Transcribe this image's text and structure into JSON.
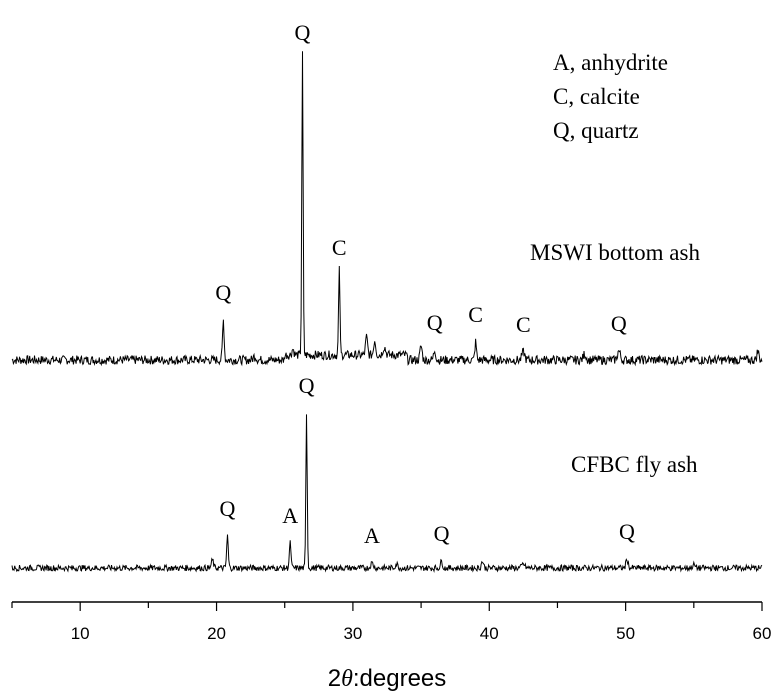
{
  "chart_data": {
    "type": "line",
    "xlabel_prefix": "2",
    "xlabel_symbol": "θ",
    "xlabel_suffix": ":degrees",
    "xlim": [
      5,
      60
    ],
    "x_ticks": [
      "10",
      "20",
      "30",
      "40",
      "50",
      "60"
    ],
    "legend": [
      "A, anhydrite",
      "C, calcite",
      "Q, quartz"
    ],
    "legend_position": "top-right",
    "series": [
      {
        "name": "MSWI bottom ash",
        "baseline": 0.0,
        "peaks": [
          {
            "x": 20.5,
            "y": 40,
            "w": 0.12,
            "label": "Q"
          },
          {
            "x": 22.8,
            "y": 4,
            "w": 0.2
          },
          {
            "x": 25.6,
            "y": 6,
            "w": 0.15
          },
          {
            "x": 26.3,
            "y": 300,
            "w": 0.1,
            "label": "Q"
          },
          {
            "x": 29.0,
            "y": 85,
            "w": 0.1,
            "label": "C"
          },
          {
            "x": 31.0,
            "y": 18,
            "w": 0.15
          },
          {
            "x": 31.6,
            "y": 15,
            "w": 0.15
          },
          {
            "x": 32.3,
            "y": 8,
            "w": 0.2
          },
          {
            "x": 35.0,
            "y": 14,
            "w": 0.15
          },
          {
            "x": 36.0,
            "y": 10,
            "w": 0.15,
            "label": "Q"
          },
          {
            "x": 39.0,
            "y": 18,
            "w": 0.12,
            "label": "C"
          },
          {
            "x": 42.5,
            "y": 8,
            "w": 0.2,
            "label": "C"
          },
          {
            "x": 47.0,
            "y": 6,
            "w": 0.2
          },
          {
            "x": 49.5,
            "y": 9,
            "w": 0.2,
            "label": "Q"
          },
          {
            "x": 59.7,
            "y": 9,
            "w": 0.15
          }
        ]
      },
      {
        "name": "CFBC fly ash",
        "baseline": 0.0,
        "peaks": [
          {
            "x": 19.7,
            "y": 8,
            "w": 0.15
          },
          {
            "x": 20.8,
            "y": 32,
            "w": 0.12,
            "label": "Q"
          },
          {
            "x": 25.4,
            "y": 25,
            "w": 0.12,
            "label": "A"
          },
          {
            "x": 26.6,
            "y": 155,
            "w": 0.1,
            "label": "Q"
          },
          {
            "x": 31.4,
            "y": 5,
            "w": 0.2,
            "label": "A"
          },
          {
            "x": 33.2,
            "y": 4,
            "w": 0.2
          },
          {
            "x": 36.5,
            "y": 7,
            "w": 0.15,
            "label": "Q"
          },
          {
            "x": 39.5,
            "y": 7,
            "w": 0.15
          },
          {
            "x": 42.5,
            "y": 4,
            "w": 0.2
          },
          {
            "x": 50.1,
            "y": 9,
            "w": 0.15,
            "label": "Q"
          },
          {
            "x": 55.0,
            "y": 3,
            "w": 0.2
          }
        ]
      }
    ]
  }
}
